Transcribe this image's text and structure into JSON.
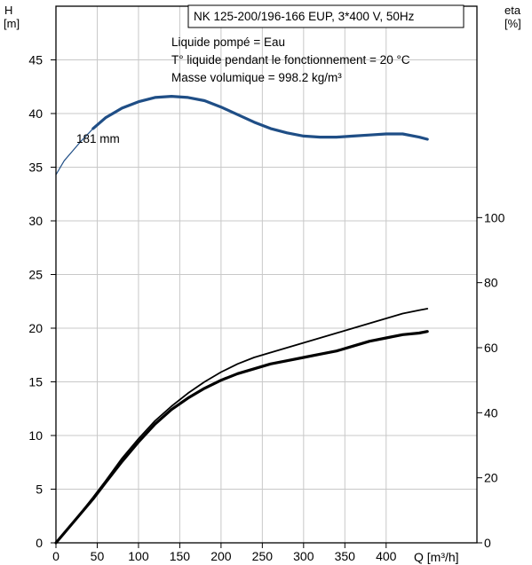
{
  "chart_data": {
    "type": "line",
    "title": "NK 125-200/196-166 EUP, 3*400 V, 50Hz",
    "annotations": [
      "Liquide pompé = Eau",
      "T° liquide pendant le fonctionnement = 20 °C",
      "Masse volumique = 998.2 kg/m³"
    ],
    "y_left_label_line1": "H",
    "y_left_label_line2": "[m]",
    "y_right_label_line1": "eta",
    "y_right_label_line2": "[%]",
    "xlabel": "Q [m³/h]",
    "xlim": [
      0,
      510
    ],
    "ylim_left": [
      0,
      50
    ],
    "ylim_right": [
      0,
      165
    ],
    "x_ticks": [
      0,
      50,
      100,
      150,
      200,
      250,
      300,
      350,
      400
    ],
    "y_left_ticks": [
      0,
      5,
      10,
      15,
      20,
      25,
      30,
      35,
      40,
      45
    ],
    "y_right_ticks": [
      0,
      20,
      40,
      60,
      80,
      100
    ],
    "grid": true,
    "curve_label": "181 mm",
    "series": [
      {
        "axis": "left",
        "color": "#1f4e86",
        "x": [
          0,
          10,
          20,
          30,
          40,
          45
        ],
        "y": [
          34.3,
          35.6,
          36.5,
          37.4,
          38.2,
          38.6
        ]
      },
      {
        "axis": "left",
        "color": "#1f4e86",
        "x": [
          45,
          60,
          80,
          100,
          120,
          140,
          160,
          180,
          200,
          220,
          240,
          260,
          280,
          300,
          320,
          340,
          360,
          380,
          400,
          420,
          440,
          450
        ],
        "y": [
          38.6,
          39.6,
          40.5,
          41.1,
          41.5,
          41.6,
          41.5,
          41.2,
          40.6,
          39.9,
          39.2,
          38.6,
          38.2,
          37.9,
          37.8,
          37.8,
          37.9,
          38.0,
          38.1,
          38.1,
          37.8,
          37.6
        ]
      },
      {
        "axis": "right",
        "color": "#000000",
        "x": [
          0,
          20,
          45,
          60,
          80,
          100,
          120,
          140,
          160,
          180,
          200,
          220,
          240,
          260,
          280,
          300,
          320,
          340,
          360,
          380,
          400,
          420,
          440,
          450
        ],
        "y": [
          0,
          6,
          14,
          19,
          26,
          32,
          37.5,
          42,
          46,
          49.5,
          52.5,
          55,
          57,
          58.5,
          60,
          61.5,
          63,
          64.5,
          66,
          67.5,
          69,
          70.5,
          71.5,
          72
        ]
      },
      {
        "axis": "right",
        "color": "#000000",
        "x": [
          0,
          20,
          45,
          60,
          80,
          100,
          120,
          140,
          160,
          180,
          200,
          220,
          240,
          260,
          280,
          300,
          320,
          340,
          360,
          380,
          400,
          420,
          440,
          450
        ],
        "y": [
          0,
          6,
          13.5,
          18.5,
          25,
          31,
          36.5,
          41,
          44.5,
          47.5,
          50,
          52,
          53.5,
          55,
          56,
          57,
          58,
          59,
          60.5,
          62,
          63,
          64,
          64.5,
          65
        ]
      }
    ]
  }
}
